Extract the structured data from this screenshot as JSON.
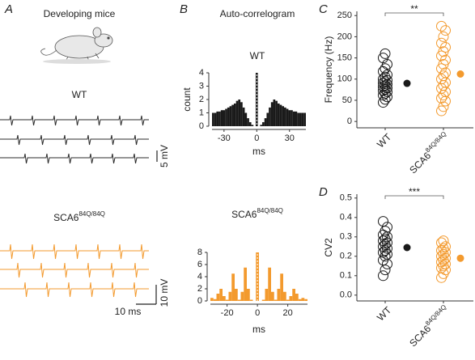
{
  "chart_data": [
    {
      "type": "traces",
      "panel": "A",
      "title": "Developing mice",
      "groups": [
        {
          "name": "WT",
          "color": "#2b2b2b",
          "scale_bars": [
            "5 mV"
          ]
        },
        {
          "name": "SCA6",
          "name_sup": "84Q/84Q",
          "color": "#f39a2e",
          "scale_bars": [
            "10 mV",
            "10 ms"
          ]
        }
      ]
    },
    {
      "type": "histogram",
      "panel": "B",
      "title": "Auto-correlogram",
      "subtitle": "WT",
      "x_label": "ms",
      "y_label": "count",
      "color": "#1a1a1a",
      "bins": [
        -41,
        -39,
        -37,
        -35,
        -33,
        -31,
        -29,
        -27,
        -25,
        -23,
        -21,
        -19,
        -17,
        -15,
        -13,
        -11,
        -9,
        -7,
        -5,
        -3,
        -1,
        1,
        3,
        5,
        7,
        9,
        11,
        13,
        15,
        17,
        19,
        21,
        23,
        25,
        27,
        29,
        31,
        33,
        35,
        37,
        39,
        41,
        43,
        45
      ],
      "counts": [
        1,
        1,
        1.1,
        1.1,
        1.2,
        1.2,
        1.3,
        1.4,
        1.5,
        1.6,
        1.7,
        1.9,
        2,
        1.8,
        1.4,
        1,
        0.6,
        0.3,
        0.1,
        0,
        4,
        0,
        0.1,
        0.3,
        0.6,
        1,
        1.4,
        1.8,
        2,
        1.9,
        1.7,
        1.6,
        1.5,
        1.4,
        1.3,
        1.2,
        1.2,
        1.1,
        1.1,
        1,
        1,
        1,
        1
      ],
      "xlim": [
        -41,
        45
      ],
      "ylim": [
        0,
        4
      ],
      "xticks": [
        -30,
        0,
        30
      ],
      "yticks": [
        0,
        1,
        2,
        3,
        4
      ]
    },
    {
      "type": "histogram",
      "subtitle": "SCA6",
      "subtitle_sup": "84Q/84Q",
      "x_label": "ms",
      "color": "#f39a2e",
      "bins": [
        -31,
        -29,
        -27,
        -25,
        -23,
        -21,
        -19,
        -17,
        -15,
        -13,
        -11,
        -9,
        -7,
        -5,
        -3,
        -1,
        1,
        3,
        5,
        7,
        9,
        11,
        13,
        15,
        17,
        19,
        21,
        23,
        25,
        27,
        29,
        31,
        33
      ],
      "counts": [
        0.5,
        0.3,
        1.2,
        2,
        0.8,
        0.2,
        1.5,
        4.5,
        2,
        0.2,
        1.5,
        5.5,
        2,
        0.2,
        0,
        8,
        0,
        0.2,
        2,
        5.5,
        1.5,
        0.2,
        2,
        4.5,
        1.5,
        0.2,
        0.8,
        2,
        1.2,
        0.3,
        0.5,
        0.3
      ],
      "xlim": [
        -31,
        33
      ],
      "ylim": [
        0,
        8
      ],
      "xticks": [
        -20,
        0,
        20
      ],
      "yticks": [
        0,
        2,
        4,
        6,
        8
      ]
    },
    {
      "type": "strip",
      "panel": "C",
      "y_label": "Frequency (Hz)",
      "categories": [
        "WT",
        "SCA6"
      ],
      "category_sup": "84Q/84Q",
      "significance": "**",
      "series": [
        {
          "color": "#1a1a1a",
          "values": [
            45,
            52,
            58,
            62,
            66,
            70,
            73,
            76,
            79,
            82,
            85,
            88,
            91,
            94,
            97,
            100,
            105,
            110,
            118,
            125,
            135,
            150,
            160
          ],
          "mean": 90,
          "error": 6
        },
        {
          "color": "#f39a2e",
          "values": [
            25,
            35,
            48,
            55,
            62,
            70,
            78,
            85,
            92,
            100,
            108,
            115,
            125,
            135,
            145,
            155,
            165,
            175,
            185,
            200,
            215,
            225
          ],
          "mean": 112,
          "error": 7
        }
      ],
      "ylim": [
        -15,
        260
      ],
      "yticks": [
        0,
        50,
        100,
        150,
        200,
        250
      ]
    },
    {
      "type": "strip",
      "panel": "D",
      "y_label": "CV2",
      "categories": [
        "WT",
        "SCA6"
      ],
      "category_sup": "84Q/84Q",
      "significance": "***",
      "series": [
        {
          "color": "#1a1a1a",
          "values": [
            0.1,
            0.13,
            0.16,
            0.18,
            0.2,
            0.21,
            0.22,
            0.23,
            0.24,
            0.25,
            0.26,
            0.27,
            0.28,
            0.29,
            0.3,
            0.31,
            0.33,
            0.35,
            0.38
          ],
          "mean": 0.245,
          "error": 0.012
        },
        {
          "color": "#f39a2e",
          "values": [
            0.09,
            0.11,
            0.13,
            0.14,
            0.15,
            0.16,
            0.17,
            0.18,
            0.19,
            0.2,
            0.21,
            0.22,
            0.23,
            0.24,
            0.25,
            0.27,
            0.28
          ],
          "mean": 0.19,
          "error": 0.01
        }
      ],
      "ylim": [
        -0.03,
        0.52
      ],
      "yticks": [
        {
          "value": 0,
          "label": "0.0"
        },
        0.1,
        0.2,
        0.3,
        0.4,
        0.5
      ]
    }
  ]
}
